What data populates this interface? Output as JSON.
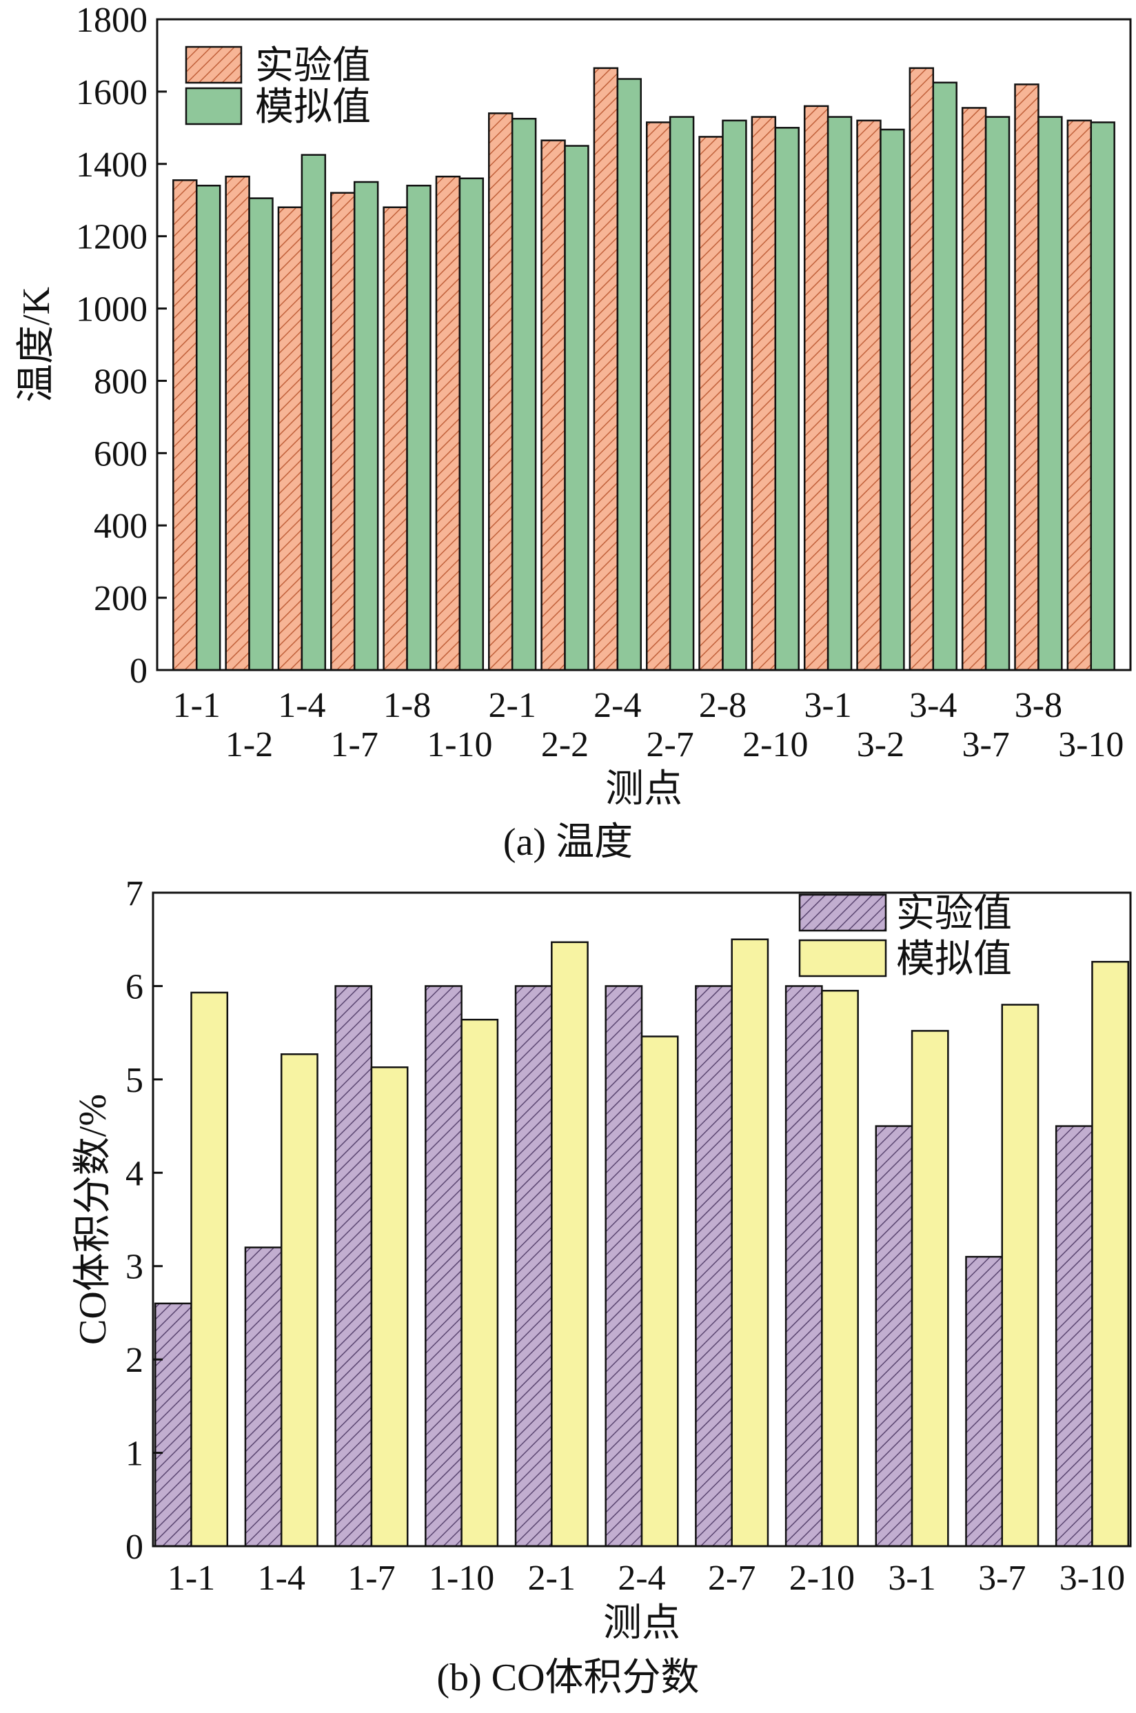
{
  "chart_data": [
    {
      "type": "bar",
      "caption": "(a) 温度",
      "xlabel": "测点",
      "ylabel": "温度/K",
      "ylim": [
        0,
        1800
      ],
      "yticks": [
        0,
        200,
        400,
        600,
        800,
        1000,
        1200,
        1400,
        1600,
        1800
      ],
      "legend_position": "top-left",
      "categories": [
        "1-1",
        "1-2",
        "1-4",
        "1-7",
        "1-8",
        "1-10",
        "2-1",
        "2-2",
        "2-4",
        "2-7",
        "2-8",
        "2-10",
        "3-1",
        "3-2",
        "3-4",
        "3-7",
        "3-8",
        "3-10"
      ],
      "series": [
        {
          "name": "实验值",
          "color": "#f7b596",
          "hatch": "#c0603a",
          "values": [
            1355,
            1365,
            1280,
            1320,
            1280,
            1365,
            1540,
            1465,
            1665,
            1515,
            1475,
            1530,
            1560,
            1520,
            1665,
            1555,
            1620,
            1520
          ]
        },
        {
          "name": "模拟值",
          "color": "#8fc79a",
          "hatch": "",
          "values": [
            1340,
            1305,
            1425,
            1350,
            1340,
            1360,
            1525,
            1450,
            1635,
            1530,
            1520,
            1500,
            1530,
            1495,
            1625,
            1530,
            1530,
            1515
          ]
        }
      ]
    },
    {
      "type": "bar",
      "caption": "(b) CO体积分数",
      "xlabel": "测点",
      "ylabel": "CO体积分数/%",
      "ylim": [
        0,
        7
      ],
      "yticks": [
        0,
        1,
        2,
        3,
        4,
        5,
        6,
        7
      ],
      "legend_position": "top-right",
      "categories": [
        "1-1",
        "1-4",
        "1-7",
        "1-10",
        "2-1",
        "2-4",
        "2-7",
        "2-10",
        "3-1",
        "3-7",
        "3-10"
      ],
      "series": [
        {
          "name": "实验值",
          "color": "#c2aed0",
          "hatch": "#5a4570",
          "values": [
            2.6,
            3.2,
            6.0,
            6.0,
            6.0,
            6.0,
            6.0,
            6.0,
            4.5,
            3.1,
            4.5
          ]
        },
        {
          "name": "模拟值",
          "color": "#f7f3a2",
          "hatch": "",
          "values": [
            5.93,
            5.27,
            5.13,
            5.64,
            6.47,
            5.46,
            6.5,
            5.95,
            5.52,
            5.8,
            6.26
          ]
        }
      ]
    }
  ]
}
